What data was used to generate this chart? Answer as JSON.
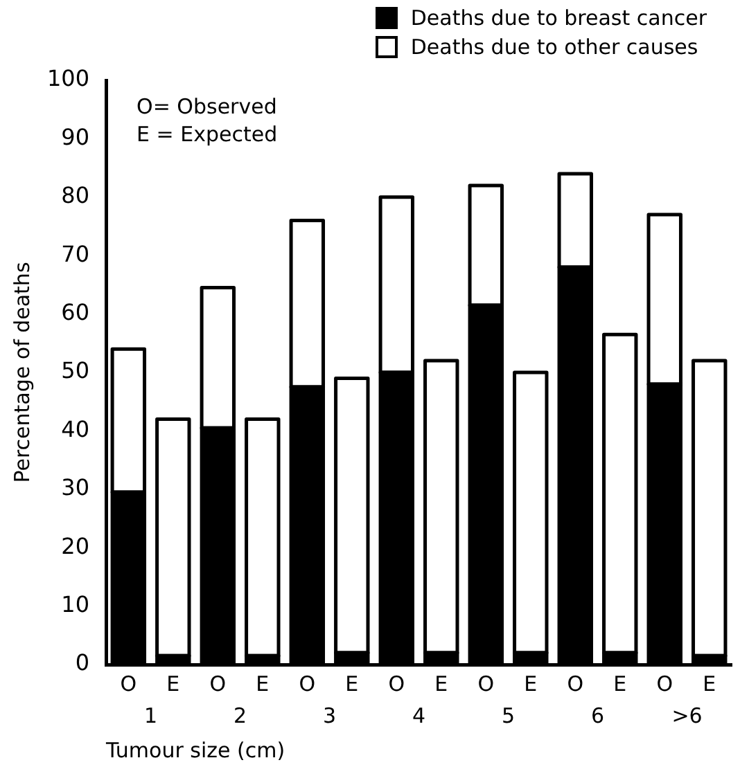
{
  "chart_data": {
    "type": "bar",
    "stacked": true,
    "xlabel": "Tumour size (cm)",
    "ylabel": "Percentage of deaths",
    "categories": [
      "O",
      "E",
      "O",
      "E",
      "O",
      "E",
      "O",
      "E",
      "O",
      "E",
      "O",
      "E",
      "O",
      "E"
    ],
    "series": [
      {
        "name": "Deaths due to breast cancer",
        "color": "#000000",
        "values": [
          29.5,
          1.5,
          40.5,
          1.5,
          47.5,
          2,
          50,
          2,
          61.5,
          2,
          68,
          2,
          48,
          1.5
        ]
      },
      {
        "name": "Deaths due to other causes",
        "color": "#ffffff",
        "values": [
          24.5,
          40.5,
          24,
          40.5,
          28.5,
          47,
          30,
          50,
          20.5,
          48,
          16,
          54.5,
          29,
          50.5
        ]
      }
    ],
    "ylim": [
      0,
      100
    ],
    "yticks": [
      0,
      10,
      20,
      30,
      40,
      50,
      60,
      70,
      80,
      90,
      100
    ],
    "grid": false,
    "legend": "top right",
    "annotations": [
      "O= Observed",
      "E = Expected",
      "1",
      "2",
      "3",
      "4",
      "5",
      "6",
      ">6"
    ]
  }
}
